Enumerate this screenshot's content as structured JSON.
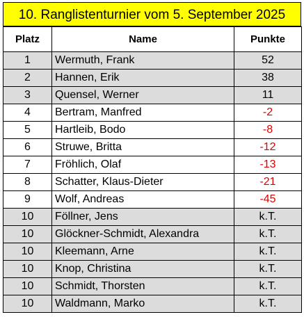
{
  "title": "10. Ranglistenturnier vom 5. September 2025",
  "headers": {
    "rank": "Platz",
    "name": "Name",
    "points": "Punkte"
  },
  "colors": {
    "title_bg": "#ffff00",
    "row_alt": "#dcdcdc",
    "negative": "#e00000"
  },
  "rows": [
    {
      "rank": "1",
      "name": "Wermuth, Frank",
      "points": "52",
      "negative": false
    },
    {
      "rank": "2",
      "name": "Hannen, Erik",
      "points": "38",
      "negative": false
    },
    {
      "rank": "3",
      "name": "Quensel, Werner",
      "points": "11",
      "negative": false
    },
    {
      "rank": "4",
      "name": "Bertram, Manfred",
      "points": "-2",
      "negative": true
    },
    {
      "rank": "5",
      "name": "Hartleib, Bodo",
      "points": "-8",
      "negative": true
    },
    {
      "rank": "6",
      "name": "Struwe, Britta",
      "points": "-12",
      "negative": true
    },
    {
      "rank": "7",
      "name": "Fröhlich, Olaf",
      "points": "-13",
      "negative": true
    },
    {
      "rank": "8",
      "name": "Schatter, Klaus-Dieter",
      "points": "-21",
      "negative": true
    },
    {
      "rank": "9",
      "name": "Wolf, Andreas",
      "points": "-45",
      "negative": true
    },
    {
      "rank": "10",
      "name": "Föllner, Jens",
      "points": "k.T.",
      "negative": false
    },
    {
      "rank": "10",
      "name": "Glöckner-Schmidt, Alexandra",
      "points": "k.T.",
      "negative": false
    },
    {
      "rank": "10",
      "name": "Kleemann, Arne",
      "points": "k.T.",
      "negative": false
    },
    {
      "rank": "10",
      "name": "Knop, Christina",
      "points": "k.T.",
      "negative": false
    },
    {
      "rank": "10",
      "name": "Schmidt, Thorsten",
      "points": "k.T.",
      "negative": false
    },
    {
      "rank": "10",
      "name": "Waldmann, Marko",
      "points": "k.T.",
      "negative": false
    }
  ]
}
